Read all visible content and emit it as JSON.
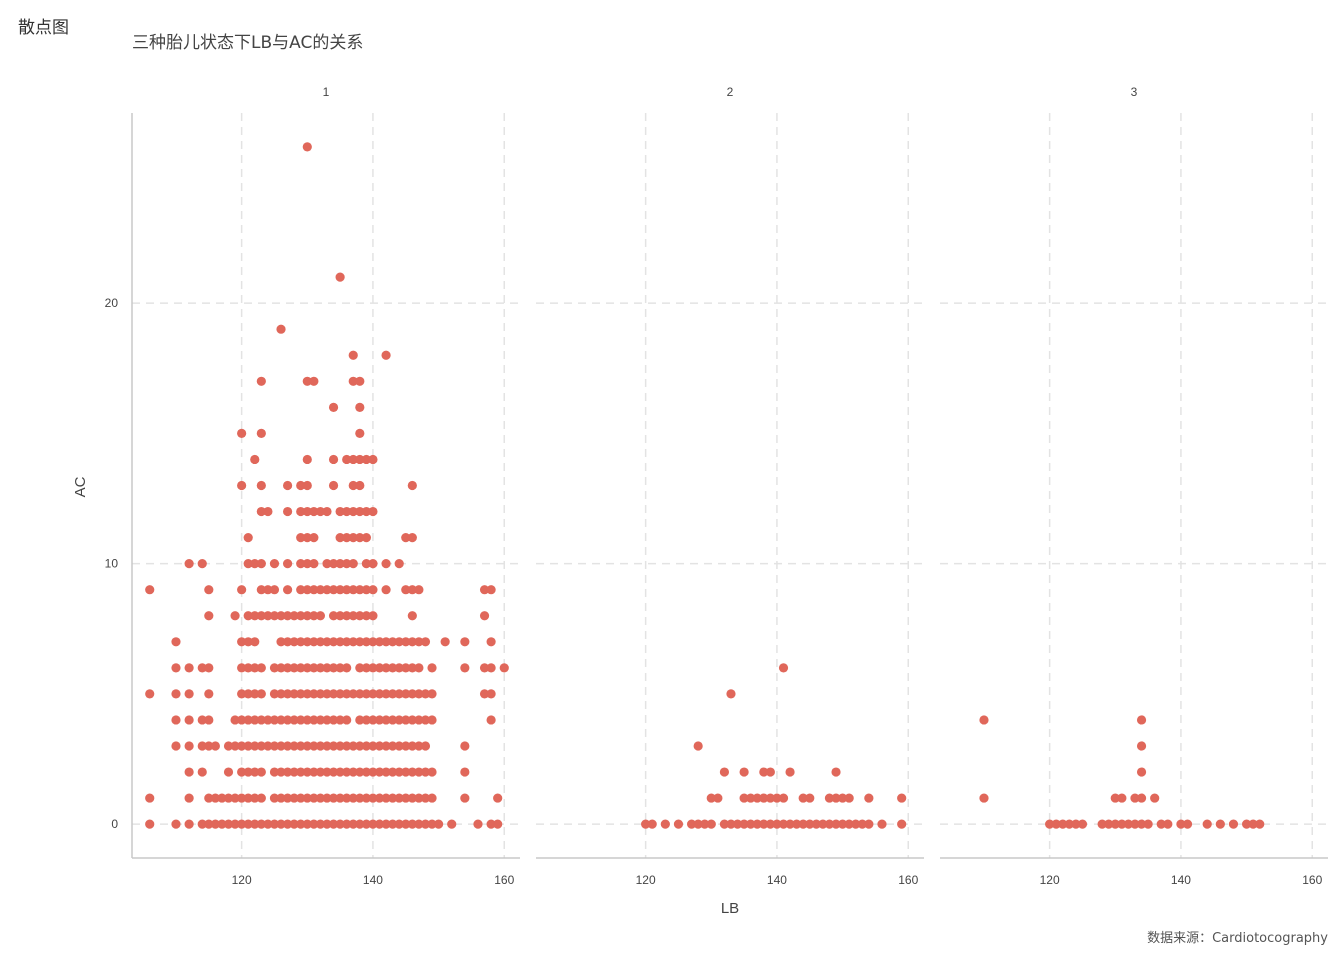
{
  "header": {
    "label": "散点图"
  },
  "chart_data": {
    "type": "scatter",
    "title": "三种胎儿状态下LB与AC的关系",
    "xlabel": "LB",
    "ylabel": "AC",
    "caption": "数据来源：Cardiotocography",
    "facet_variable_values": [
      "1",
      "2",
      "3"
    ],
    "xlim": [
      103.3,
      162.4
    ],
    "ylim": [
      -1.3,
      27.3
    ],
    "xticks": [
      120,
      140,
      160
    ],
    "yticks": [
      0,
      10,
      20
    ],
    "grid": true,
    "point_color": "#E0675A",
    "note": "points listed per AC level; [a,b] pairs denote every integer LB from a to b",
    "facets": [
      {
        "label": "1",
        "rows": [
          {
            "ac": 26,
            "lb": [
              130
            ]
          },
          {
            "ac": 21,
            "lb": [
              135
            ]
          },
          {
            "ac": 19,
            "lb": [
              126
            ]
          },
          {
            "ac": 18,
            "lb": [
              137,
              142
            ]
          },
          {
            "ac": 17,
            "lb": [
              123,
              130,
              131,
              137,
              138
            ]
          },
          {
            "ac": 16,
            "lb": [
              134,
              138
            ]
          },
          {
            "ac": 15,
            "lb": [
              120,
              123,
              138
            ]
          },
          {
            "ac": 14,
            "lb": [
              122,
              130,
              134,
              [
                136,
                140
              ]
            ]
          },
          {
            "ac": 13,
            "lb": [
              120,
              123,
              127,
              129,
              130,
              134,
              137,
              138,
              146
            ]
          },
          {
            "ac": 12,
            "lb": [
              123,
              124,
              127,
              [
                129,
                133
              ],
              [
                135,
                139
              ],
              140
            ]
          },
          {
            "ac": 11,
            "lb": [
              121,
              [
                129,
                131
              ],
              [
                135,
                139
              ],
              145,
              146
            ]
          },
          {
            "ac": 10,
            "lb": [
              112,
              114,
              121,
              122,
              123,
              125,
              127,
              129,
              130,
              131,
              133,
              134,
              135,
              136,
              137,
              139,
              140,
              142,
              144
            ]
          },
          {
            "ac": 9,
            "lb": [
              106,
              115,
              120,
              123,
              124,
              125,
              127,
              [
                129,
                140
              ],
              142,
              145,
              146,
              147,
              157,
              158
            ]
          },
          {
            "ac": 8,
            "lb": [
              115,
              119,
              [
                121,
                132
              ],
              [
                134,
                140
              ],
              146,
              157
            ]
          },
          {
            "ac": 7,
            "lb": [
              110,
              120,
              121,
              122,
              [
                126,
                148
              ],
              151,
              154,
              158
            ]
          },
          {
            "ac": 6,
            "lb": [
              110,
              112,
              114,
              115,
              [
                120,
                123
              ],
              [
                125,
                136
              ],
              [
                138,
                147
              ],
              149,
              154,
              157,
              158,
              160
            ]
          },
          {
            "ac": 5,
            "lb": [
              106,
              110,
              112,
              115,
              [
                120,
                123
              ],
              [
                125,
                149
              ],
              157,
              158
            ]
          },
          {
            "ac": 4,
            "lb": [
              110,
              112,
              114,
              115,
              [
                119,
                136
              ],
              [
                138,
                149
              ],
              158
            ]
          },
          {
            "ac": 3,
            "lb": [
              110,
              112,
              114,
              115,
              116,
              [
                118,
                148
              ],
              154
            ]
          },
          {
            "ac": 2,
            "lb": [
              112,
              114,
              118,
              [
                120,
                123
              ],
              [
                125,
                149
              ],
              154
            ]
          },
          {
            "ac": 1,
            "lb": [
              106,
              112,
              [
                115,
                123
              ],
              [
                125,
                149
              ],
              154,
              159
            ]
          },
          {
            "ac": 0,
            "lb": [
              106,
              110,
              112,
              [
                114,
                150
              ],
              152,
              156,
              158,
              159
            ]
          }
        ]
      },
      {
        "label": "2",
        "rows": [
          {
            "ac": 6,
            "lb": [
              141
            ]
          },
          {
            "ac": 5,
            "lb": [
              133
            ]
          },
          {
            "ac": 3,
            "lb": [
              128
            ]
          },
          {
            "ac": 2,
            "lb": [
              132,
              135,
              138,
              139,
              142,
              149
            ]
          },
          {
            "ac": 1,
            "lb": [
              130,
              131,
              [
                135,
                141
              ],
              144,
              145,
              [
                148,
                151
              ],
              154,
              159
            ]
          },
          {
            "ac": 0,
            "lb": [
              120,
              121,
              123,
              125,
              [
                127,
                130
              ],
              [
                132,
                153
              ],
              154,
              156,
              159
            ]
          }
        ]
      },
      {
        "label": "3",
        "rows": [
          {
            "ac": 4,
            "lb": [
              110,
              134
            ]
          },
          {
            "ac": 3,
            "lb": [
              134
            ]
          },
          {
            "ac": 2,
            "lb": [
              134
            ]
          },
          {
            "ac": 1,
            "lb": [
              110,
              130,
              131,
              133,
              134,
              136
            ]
          },
          {
            "ac": 0,
            "lb": [
              [
                120,
                125
              ],
              [
                128,
                135
              ],
              137,
              138,
              140,
              141,
              144,
              146,
              148,
              [
                150,
                152
              ]
            ]
          }
        ]
      }
    ]
  }
}
